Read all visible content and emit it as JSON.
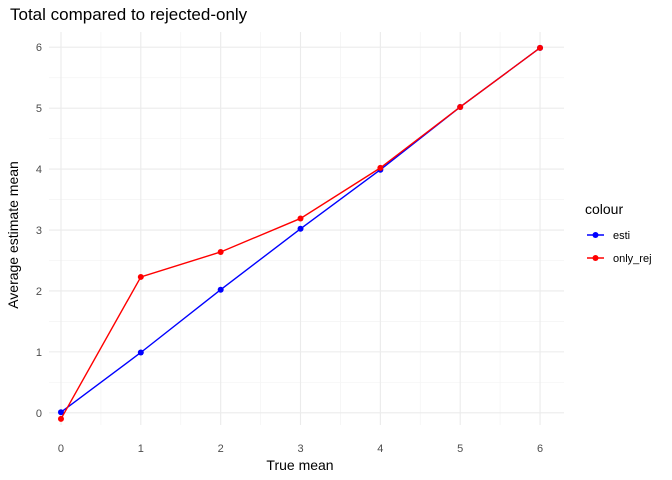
{
  "chart_data": {
    "type": "line",
    "title": "Total compared to rejected-only",
    "xlabel": "True mean",
    "ylabel": "Average estimate mean",
    "x": [
      0,
      1,
      2,
      3,
      4,
      5,
      6
    ],
    "xticks": [
      "0",
      "1",
      "2",
      "3",
      "4",
      "5",
      "6"
    ],
    "yticks": [
      "0",
      "1",
      "2",
      "3",
      "4",
      "5",
      "6"
    ],
    "xlim": [
      -0.15,
      6.3
    ],
    "ylim": [
      -0.2,
      6.25
    ],
    "grid": true,
    "legend_title": "colour",
    "legend_position": "right",
    "series": [
      {
        "name": "esti",
        "color": "#0000ff",
        "values": [
          0.01,
          0.99,
          2.02,
          3.02,
          3.99,
          5.02,
          5.99
        ]
      },
      {
        "name": "only_rej",
        "color": "#ff0000",
        "values": [
          -0.1,
          2.23,
          2.64,
          3.19,
          4.02,
          5.02,
          5.99
        ]
      }
    ]
  }
}
